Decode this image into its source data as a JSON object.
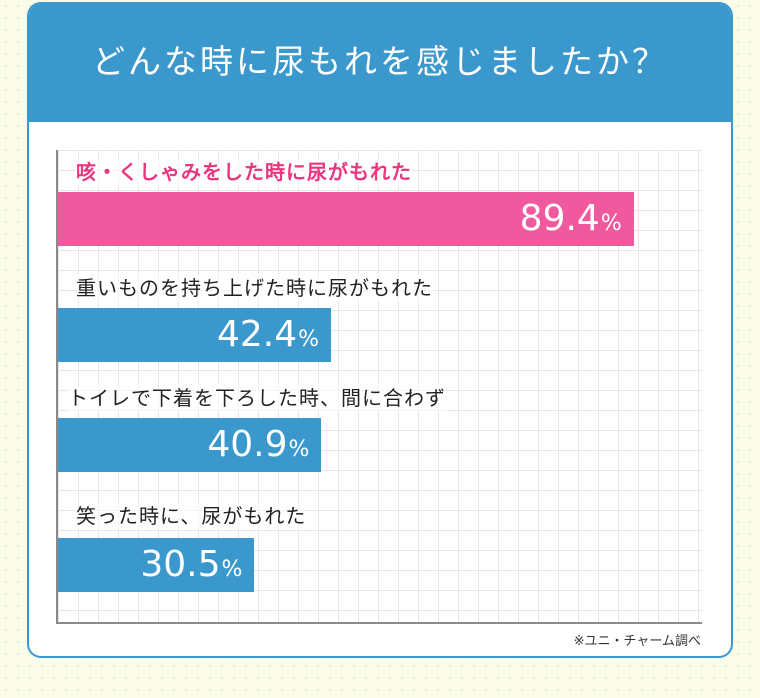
{
  "title": "どんな時に尿もれを感じましたか？",
  "source": "※ユニ・チャーム調べ",
  "chart_data": {
    "type": "bar",
    "orientation": "horizontal",
    "categories": [
      "咳・くしゃみをした時に尿がもれた",
      "重いものを持ち上げた時に尿がもれた",
      "トイレで下着を下ろした時、間に合わず",
      "笑った時に、尿がもれた"
    ],
    "values": [
      89.4,
      42.4,
      40.9,
      30.5
    ],
    "unit": "%",
    "xlim": [
      0,
      100
    ],
    "colors": [
      "#f0599d",
      "#3a98cd",
      "#3a98cd",
      "#3a98cd"
    ],
    "highlight_text_color": "#e8367f",
    "grid": true,
    "legend": "none"
  }
}
